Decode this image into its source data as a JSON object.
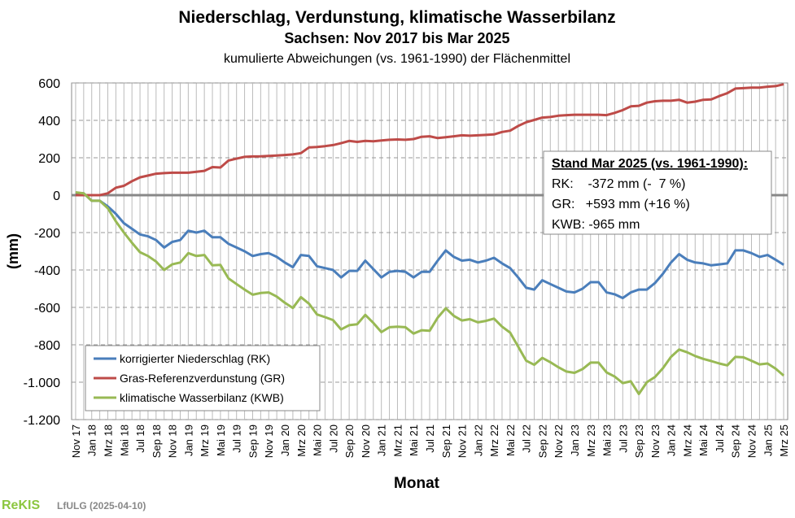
{
  "chart_data": {
    "type": "line",
    "title": "Niederschlag, Verdunstung, klimatische Wasserbilanz",
    "subtitle": "Sachsen:  Nov 2017 bis Mar 2025",
    "subtitle2": "kumulierte Abweichungen (vs. 1961-1990) der Flächenmittel",
    "x_label": "Monat",
    "y_label": "(mm)",
    "categories": [
      "Nov 17",
      null,
      "Jan 18",
      null,
      "Mrz 18",
      null,
      "Mai 18",
      null,
      "Jul 18",
      null,
      "Sep 18",
      null,
      "Nov 18",
      null,
      "Jan 19",
      null,
      "Mrz 19",
      null,
      "Mai 19",
      null,
      "Jul 19",
      null,
      "Sep 19",
      null,
      "Nov 19",
      null,
      "Jan 20",
      null,
      "Mrz 20",
      null,
      "Mai 20",
      null,
      "Jul 20",
      null,
      "Sep 20",
      null,
      "Nov 20",
      null,
      "Jan 21",
      null,
      "Mrz 21",
      null,
      "Mai 21",
      null,
      "Jul 21",
      null,
      "Sep 21",
      null,
      "Nov 21",
      null,
      "Jan 22",
      null,
      "Mrz 22",
      null,
      "Mai 22",
      null,
      "Jul 22",
      null,
      "Sep 22",
      null,
      "Nov 22",
      null,
      "Jan 23",
      null,
      "Mrz 23",
      null,
      "Mai 23",
      null,
      "Jul 23",
      null,
      "Sep 23",
      null,
      "Nov 23",
      null,
      "Jan 24",
      null,
      "Mrz 24",
      null,
      "Mai 24",
      null,
      "Jul 24",
      null,
      "Sep 24",
      null,
      "Nov 24",
      null,
      "Jan 25",
      null,
      "Mrz 25"
    ],
    "series": [
      {
        "name": "korrigierter Niederschlag (RK)",
        "color": "#4a7ebb",
        "values": [
          10,
          10,
          -30,
          -30,
          -60,
          -100,
          -150,
          -180,
          -210,
          -220,
          -240,
          -280,
          -250,
          -240,
          -190,
          -200,
          -190,
          -225,
          -225,
          -260,
          -280,
          -300,
          -325,
          -315,
          -310,
          -330,
          -360,
          -385,
          -320,
          -325,
          -380,
          -390,
          -400,
          -440,
          -405,
          -405,
          -350,
          -395,
          -440,
          -410,
          -405,
          -410,
          -440,
          -410,
          -410,
          -350,
          -295,
          -330,
          -350,
          -345,
          -360,
          -350,
          -335,
          -365,
          -390,
          -440,
          -495,
          -505,
          -455,
          -475,
          -495,
          -515,
          -520,
          -500,
          -465,
          -465,
          -520,
          -530,
          -550,
          -520,
          -505,
          -505,
          -470,
          -420,
          -360,
          -315,
          -345,
          -360,
          -365,
          -375,
          -370,
          -365,
          -295,
          -295,
          -310,
          -330,
          -320,
          -345,
          -372
        ]
      },
      {
        "name": "Gras-Referenzverdunstung (GR)",
        "color": "#be4b48",
        "values": [
          0,
          0,
          0,
          0,
          10,
          40,
          50,
          75,
          95,
          105,
          115,
          118,
          120,
          120,
          120,
          125,
          130,
          150,
          148,
          185,
          195,
          205,
          207,
          208,
          210,
          212,
          215,
          218,
          225,
          255,
          258,
          262,
          268,
          278,
          290,
          285,
          290,
          288,
          292,
          296,
          298,
          296,
          300,
          312,
          315,
          305,
          310,
          315,
          320,
          318,
          320,
          322,
          325,
          338,
          345,
          370,
          390,
          402,
          415,
          418,
          425,
          428,
          430,
          430,
          430,
          430,
          428,
          440,
          455,
          475,
          478,
          495,
          502,
          505,
          505,
          510,
          495,
          500,
          510,
          512,
          530,
          545,
          570,
          572,
          575,
          575,
          580,
          583,
          593
        ]
      },
      {
        "name": "klimatische Wasserbilanz (KWB)",
        "color": "#98b954",
        "values": [
          15,
          10,
          -30,
          -30,
          -70,
          -140,
          -200,
          -255,
          -305,
          -325,
          -355,
          -400,
          -370,
          -360,
          -310,
          -325,
          -320,
          -375,
          -373,
          -445,
          -475,
          -505,
          -532,
          -523,
          -520,
          -542,
          -575,
          -603,
          -545,
          -580,
          -638,
          -652,
          -668,
          -718,
          -695,
          -690,
          -640,
          -683,
          -732,
          -706,
          -703,
          -706,
          -740,
          -722,
          -725,
          -655,
          -605,
          -645,
          -670,
          -663,
          -680,
          -672,
          -660,
          -703,
          -735,
          -810,
          -885,
          -907,
          -870,
          -893,
          -920,
          -943,
          -950,
          -930,
          -895,
          -895,
          -948,
          -970,
          -1005,
          -995,
          -1063,
          -1000,
          -972,
          -925,
          -865,
          -825,
          -840,
          -860,
          -875,
          -887,
          -900,
          -910,
          -865,
          -867,
          -885,
          -905,
          -900,
          -928,
          -965
        ]
      }
    ],
    "ylim": [
      -1200,
      600
    ],
    "yticks": [
      {
        "value": -1200,
        "label": "-1.200"
      },
      {
        "value": -1000,
        "label": "-1.000"
      },
      -800,
      -600,
      -400,
      -200,
      0,
      200,
      400,
      600
    ],
    "grid": true,
    "legend": "lower left",
    "annotations": [
      "Stand Mar 2025 (vs. 1961-1990):",
      "RK:    -372 mm (-  7 %)",
      "GR:   +593 mm (+16 %)",
      "KWB: -965 mm"
    ],
    "footer_logo": "ReKIS",
    "footer": "LfULG (2025-04-10)"
  }
}
